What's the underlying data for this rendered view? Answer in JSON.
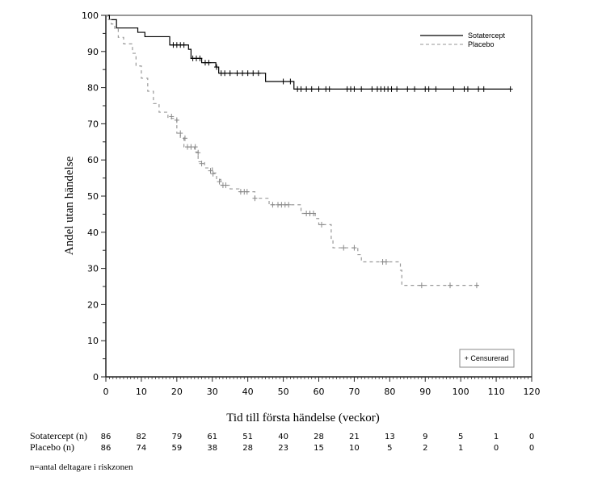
{
  "chart_data": {
    "type": "line",
    "title": "",
    "xlabel": "Tid till första händelse (veckor)",
    "ylabel": "Andel utan händelse",
    "xlim": [
      0,
      120
    ],
    "ylim": [
      0,
      100
    ],
    "x_ticks": [
      "0",
      "10",
      "20",
      "30",
      "40",
      "50",
      "60",
      "70",
      "80",
      "90",
      "100",
      "110",
      "120"
    ],
    "y_ticks": [
      "0",
      "10",
      "20",
      "30",
      "40",
      "50",
      "60",
      "70",
      "80",
      "90",
      "100"
    ],
    "grid": false,
    "legend_position": "top-right",
    "censor_legend": "+ Censurerad",
    "series": [
      {
        "name": "Sotatercept",
        "color": "#000000",
        "style": "solid",
        "steps": [
          [
            0,
            100
          ],
          [
            1,
            98.8
          ],
          [
            3,
            96.5
          ],
          [
            9,
            95.3
          ],
          [
            11,
            94.1
          ],
          [
            18,
            91.8
          ],
          [
            23.3,
            90.6
          ],
          [
            24,
            88.1
          ],
          [
            27,
            86.9
          ],
          [
            31,
            85.7
          ],
          [
            31.8,
            84.0
          ],
          [
            45,
            81.7
          ],
          [
            53,
            79.6
          ],
          [
            114,
            79.6
          ]
        ],
        "censored": [
          [
            19,
            91.8
          ],
          [
            20,
            91.8
          ],
          [
            21,
            91.8
          ],
          [
            22,
            91.8
          ],
          [
            24.5,
            88.1
          ],
          [
            25.5,
            88.1
          ],
          [
            26.5,
            88.1
          ],
          [
            28,
            86.9
          ],
          [
            29,
            86.9
          ],
          [
            31.2,
            85.7
          ],
          [
            32.5,
            84.0
          ],
          [
            33.5,
            84.0
          ],
          [
            35,
            84.0
          ],
          [
            37,
            84.0
          ],
          [
            38.5,
            84.0
          ],
          [
            40,
            84.0
          ],
          [
            41.5,
            84.0
          ],
          [
            43,
            84.0
          ],
          [
            50,
            81.7
          ],
          [
            52,
            81.7
          ],
          [
            54,
            79.6
          ],
          [
            55,
            79.6
          ],
          [
            56.5,
            79.6
          ],
          [
            58,
            79.6
          ],
          [
            60,
            79.6
          ],
          [
            62,
            79.6
          ],
          [
            63,
            79.6
          ],
          [
            68,
            79.6
          ],
          [
            69,
            79.6
          ],
          [
            70,
            79.6
          ],
          [
            72,
            79.6
          ],
          [
            75,
            79.6
          ],
          [
            76.5,
            79.6
          ],
          [
            77.5,
            79.6
          ],
          [
            78.5,
            79.6
          ],
          [
            79.5,
            79.6
          ],
          [
            80.5,
            79.6
          ],
          [
            82,
            79.6
          ],
          [
            85,
            79.6
          ],
          [
            87,
            79.6
          ],
          [
            90,
            79.6
          ],
          [
            91,
            79.6
          ],
          [
            93,
            79.6
          ],
          [
            98,
            79.6
          ],
          [
            101,
            79.6
          ],
          [
            102,
            79.6
          ],
          [
            105,
            79.6
          ],
          [
            106.5,
            79.6
          ],
          [
            114,
            79.6
          ]
        ]
      },
      {
        "name": "Placebo",
        "color": "#999999",
        "style": "dashed",
        "steps": [
          [
            0,
            100
          ],
          [
            0.5,
            98.8
          ],
          [
            1.5,
            97.6
          ],
          [
            2.5,
            96.4
          ],
          [
            3.5,
            93.9
          ],
          [
            5,
            92.1
          ],
          [
            7.5,
            89.5
          ],
          [
            8.5,
            86.0
          ],
          [
            10,
            82.6
          ],
          [
            11.8,
            79.0
          ],
          [
            13.4,
            75.6
          ],
          [
            15,
            73.2
          ],
          [
            17.5,
            71.5
          ],
          [
            20,
            67.4
          ],
          [
            21,
            66.2
          ],
          [
            22,
            63.6
          ],
          [
            25,
            62.2
          ],
          [
            26,
            59.5
          ],
          [
            27.8,
            57.8
          ],
          [
            30,
            56.4
          ],
          [
            31.2,
            54.6
          ],
          [
            32.4,
            53.0
          ],
          [
            35,
            52.0
          ],
          [
            37.5,
            51.2
          ],
          [
            42,
            49.4
          ],
          [
            46,
            47.6
          ],
          [
            55,
            45.2
          ],
          [
            59,
            43.8
          ],
          [
            60,
            42.1
          ],
          [
            63.5,
            38.0
          ],
          [
            64,
            35.7
          ],
          [
            71,
            33.8
          ],
          [
            72,
            31.8
          ],
          [
            83,
            29.5
          ],
          [
            83.4,
            25.3
          ],
          [
            105,
            25.3
          ]
        ],
        "censored": [
          [
            18.5,
            72.0
          ],
          [
            20,
            71.0
          ],
          [
            21,
            67.4
          ],
          [
            22.3,
            66.0
          ],
          [
            23,
            63.6
          ],
          [
            24,
            63.6
          ],
          [
            25.2,
            63.6
          ],
          [
            26,
            62.0
          ],
          [
            27,
            59.0
          ],
          [
            29.5,
            57.0
          ],
          [
            30.2,
            56.2
          ],
          [
            32,
            54.0
          ],
          [
            33,
            53.0
          ],
          [
            33.8,
            53.0
          ],
          [
            38,
            51.2
          ],
          [
            39,
            51.2
          ],
          [
            39.8,
            51.2
          ],
          [
            42,
            49.4
          ],
          [
            47,
            47.6
          ],
          [
            48.5,
            47.6
          ],
          [
            49.5,
            47.6
          ],
          [
            50.5,
            47.6
          ],
          [
            51.5,
            47.6
          ],
          [
            56.5,
            45.2
          ],
          [
            57.5,
            45.2
          ],
          [
            58.5,
            45.2
          ],
          [
            60.8,
            42.1
          ],
          [
            67,
            35.7
          ],
          [
            70,
            35.7
          ],
          [
            78,
            31.8
          ],
          [
            79,
            31.8
          ],
          [
            89,
            25.3
          ],
          [
            97,
            25.3
          ],
          [
            104.5,
            25.3
          ]
        ]
      }
    ],
    "risk_table": {
      "timepoints": [
        0,
        10,
        20,
        30,
        40,
        50,
        60,
        70,
        80,
        90,
        100,
        110,
        120
      ],
      "rows": [
        {
          "label": "Sotatercept (n)",
          "values": [
            "86",
            "82",
            "79",
            "61",
            "51",
            "40",
            "28",
            "21",
            "13",
            "9",
            "5",
            "1",
            "0"
          ]
        },
        {
          "label": "Placebo (n)",
          "values": [
            "86",
            "74",
            "59",
            "38",
            "28",
            "23",
            "15",
            "10",
            "5",
            "2",
            "1",
            "0",
            "0"
          ]
        }
      ],
      "footnote": "n=antal deltagare i riskzonen"
    }
  }
}
